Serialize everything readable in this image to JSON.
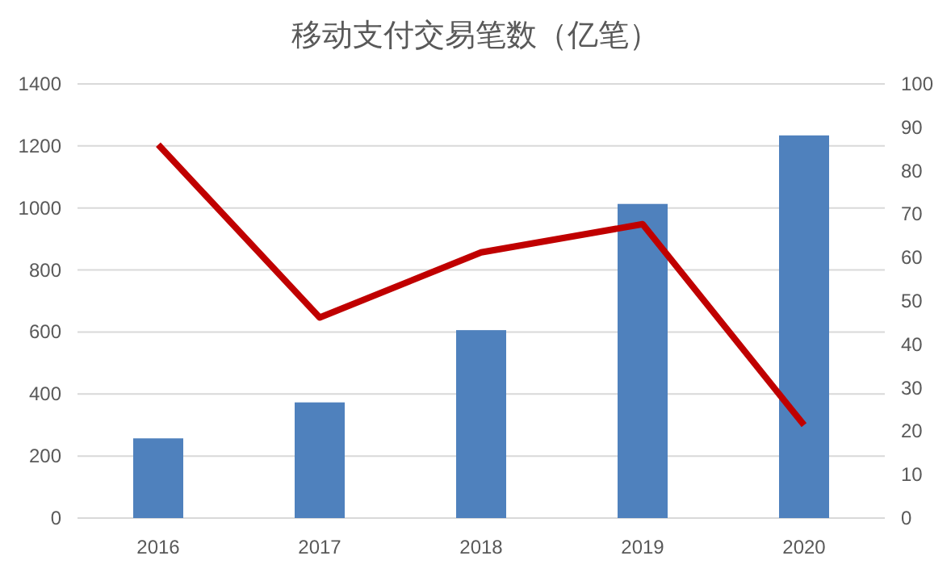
{
  "chart_data": {
    "type": "bar",
    "title": "移动支付交易笔数（亿笔）",
    "categories": [
      "2016",
      "2017",
      "2018",
      "2019",
      "2020"
    ],
    "series": [
      {
        "color": "#4f81bd",
        "values": [
          257,
          373,
          606,
          1013,
          1234
        ]
      },
      {
        "type": "line",
        "axis": "y2",
        "color": "#c00000",
        "values": [
          86.0,
          46.2,
          61.2,
          67.7,
          21.4
        ],
        "marker": "none"
      }
    ],
    "ylim": [
      0,
      1400
    ],
    "yticks": [
      0,
      200,
      400,
      600,
      800,
      1000,
      1200,
      1400
    ],
    "y2lim": [
      0,
      100
    ],
    "y2ticks": [
      0,
      10,
      20,
      30,
      40,
      50,
      60,
      70,
      80,
      90,
      100
    ],
    "grid": "y"
  }
}
